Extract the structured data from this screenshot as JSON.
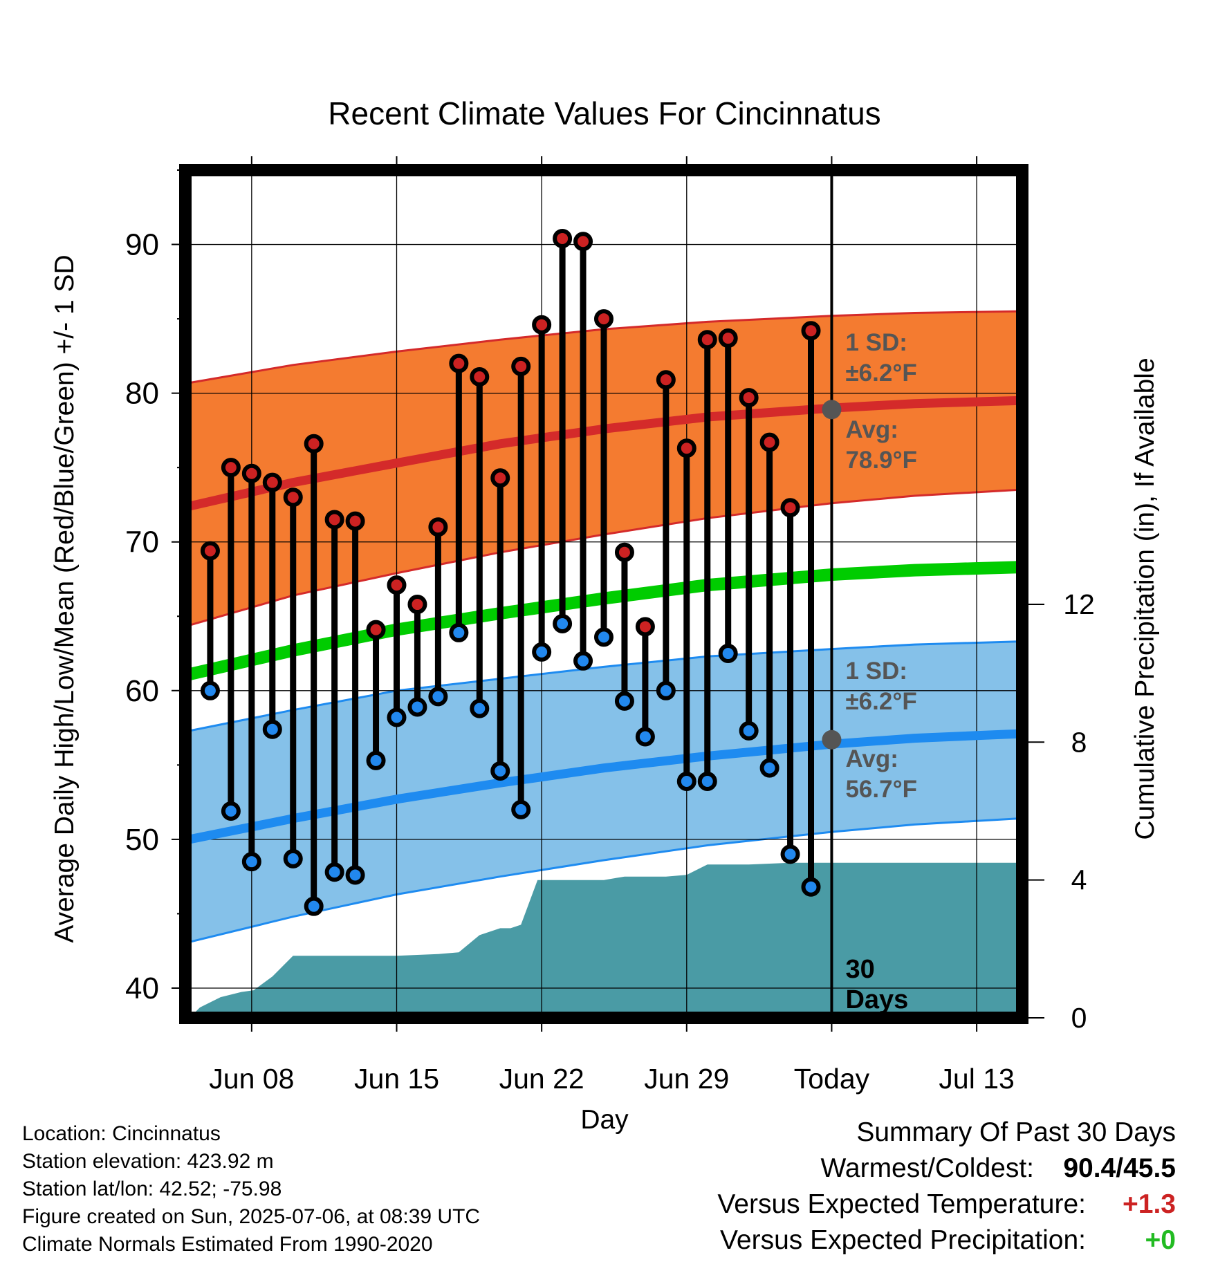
{
  "chart_data": {
    "type": "line",
    "title": "Recent Climate Values For Cincinnatus",
    "xlabel": "Day",
    "ylabel_left": "Average Daily High/Low/Mean (Red/Blue/Green) +/- 1 SD",
    "ylabel_right": "Cumulative Precipitation (in), If Available",
    "x_ticks": [
      {
        "day": 8,
        "label": "Jun 08"
      },
      {
        "day": 15,
        "label": "Jun 15"
      },
      {
        "day": 22,
        "label": "Jun 22"
      },
      {
        "day": 29,
        "label": "Jun 29"
      },
      {
        "day": 36,
        "label": "Today"
      },
      {
        "day": 43,
        "label": "Jul 13"
      }
    ],
    "x_range": [
      4.8,
      45.2
    ],
    "ylim_left": [
      38,
      95
    ],
    "yticks_left": [
      "40",
      "50",
      "60",
      "70",
      "80",
      "90"
    ],
    "ylim_right": [
      0,
      24.6
    ],
    "yticks_right": [
      "0",
      "4",
      "8",
      "12"
    ],
    "grid": true,
    "daily_highs": [
      69.4,
      75.0,
      74.6,
      74.0,
      73.0,
      76.6,
      71.5,
      71.4,
      64.1,
      67.1,
      65.8,
      71.0,
      82.0,
      81.1,
      74.3,
      81.8,
      84.6,
      90.4,
      90.2,
      85.0,
      69.3,
      64.3,
      80.9,
      76.3,
      83.6,
      83.7,
      79.7,
      76.7,
      72.3,
      84.2
    ],
    "daily_lows": [
      60.0,
      51.9,
      48.5,
      57.4,
      48.7,
      45.5,
      47.8,
      47.6,
      55.3,
      58.2,
      58.9,
      59.6,
      63.9,
      58.8,
      54.6,
      52.0,
      62.6,
      64.5,
      62.0,
      63.6,
      59.3,
      56.9,
      60.0,
      53.9,
      53.9,
      62.5,
      57.3,
      54.8,
      49.0,
      46.8
    ],
    "first_day": 6,
    "normal_high": {
      "days": [
        5,
        10,
        15,
        20,
        25,
        30,
        36,
        40,
        45
      ],
      "mean": [
        72.4,
        74.0,
        75.3,
        76.6,
        77.6,
        78.4,
        79.0,
        79.3,
        79.5
      ],
      "upper": [
        80.7,
        81.9,
        82.8,
        83.6,
        84.3,
        84.8,
        85.2,
        85.4,
        85.5
      ],
      "lower": [
        64.4,
        66.4,
        67.9,
        69.3,
        70.5,
        71.6,
        72.6,
        73.1,
        73.5
      ]
    },
    "normal_low": {
      "days": [
        5,
        10,
        15,
        20,
        25,
        30,
        36,
        40,
        45
      ],
      "mean": [
        50.0,
        51.4,
        52.7,
        53.8,
        54.8,
        55.6,
        56.4,
        56.8,
        57.1
      ],
      "upper": [
        57.3,
        58.7,
        60.0,
        60.8,
        61.6,
        62.3,
        62.8,
        63.1,
        63.3
      ],
      "lower": [
        43.1,
        44.8,
        46.3,
        47.5,
        48.6,
        49.6,
        50.5,
        51.0,
        51.4
      ]
    },
    "normal_mean": {
      "days": [
        5,
        10,
        15,
        20,
        25,
        30,
        36,
        40,
        45
      ],
      "mean": [
        61.1,
        62.7,
        64.1,
        65.2,
        66.2,
        67.1,
        67.8,
        68.1,
        68.3
      ]
    },
    "precip": {
      "days": [
        5,
        5.5,
        6.5,
        7.5,
        8.1,
        9.0,
        10.0,
        10.8,
        15,
        17.0,
        18.0,
        19.0,
        20.0,
        20.5,
        21.0,
        21.8,
        25,
        26.0,
        28.0,
        29.0,
        30.0,
        32.0,
        34.0,
        36.0,
        45.0
      ],
      "values": [
        0,
        0.3,
        0.6,
        0.75,
        0.8,
        1.2,
        1.8,
        1.8,
        1.8,
        1.85,
        1.9,
        2.4,
        2.6,
        2.6,
        2.7,
        4.0,
        4.0,
        4.1,
        4.1,
        4.15,
        4.45,
        4.45,
        4.5,
        4.5,
        4.5
      ]
    },
    "annotations": {
      "high_sd": [
        "1 SD:",
        "±6.2°F"
      ],
      "high_avg": [
        "Avg:",
        "78.9°F"
      ],
      "low_sd": [
        "1 SD:",
        "±6.2°F"
      ],
      "low_avg": [
        "Avg:",
        "56.7°F"
      ],
      "today_label": [
        "30",
        "Days"
      ],
      "today_high_avg": 78.9,
      "today_low_avg": 56.7
    },
    "colors": {
      "high_band": "#f47b30",
      "high_line": "#d42a2a",
      "low_band": "#85c1e9",
      "low_line": "#1e8bf0",
      "mean_line": "#00cc00",
      "precip": "#4a9ba5",
      "high_marker": "#cc2222",
      "low_marker": "#2288ee"
    }
  },
  "info": {
    "location": "Location: Cincinnatus",
    "elevation": "Station elevation: 423.92 m",
    "latlon": "Station lat/lon: 42.52; -75.98",
    "created": "Figure created on Sun, 2025-07-06, at 08:39 UTC",
    "normals": "Climate Normals Estimated From 1990-2020"
  },
  "summary": {
    "heading": "Summary Of Past 30 Days",
    "warmest_label": "Warmest/Coldest:",
    "warmest_value": "90.4/45.5",
    "temp_label": "Versus Expected Temperature:",
    "temp_value": "+1.3",
    "temp_color": "#cc2222",
    "precip_label": "Versus Expected Precipitation:",
    "precip_value": "+0",
    "precip_color": "#22bb22"
  }
}
